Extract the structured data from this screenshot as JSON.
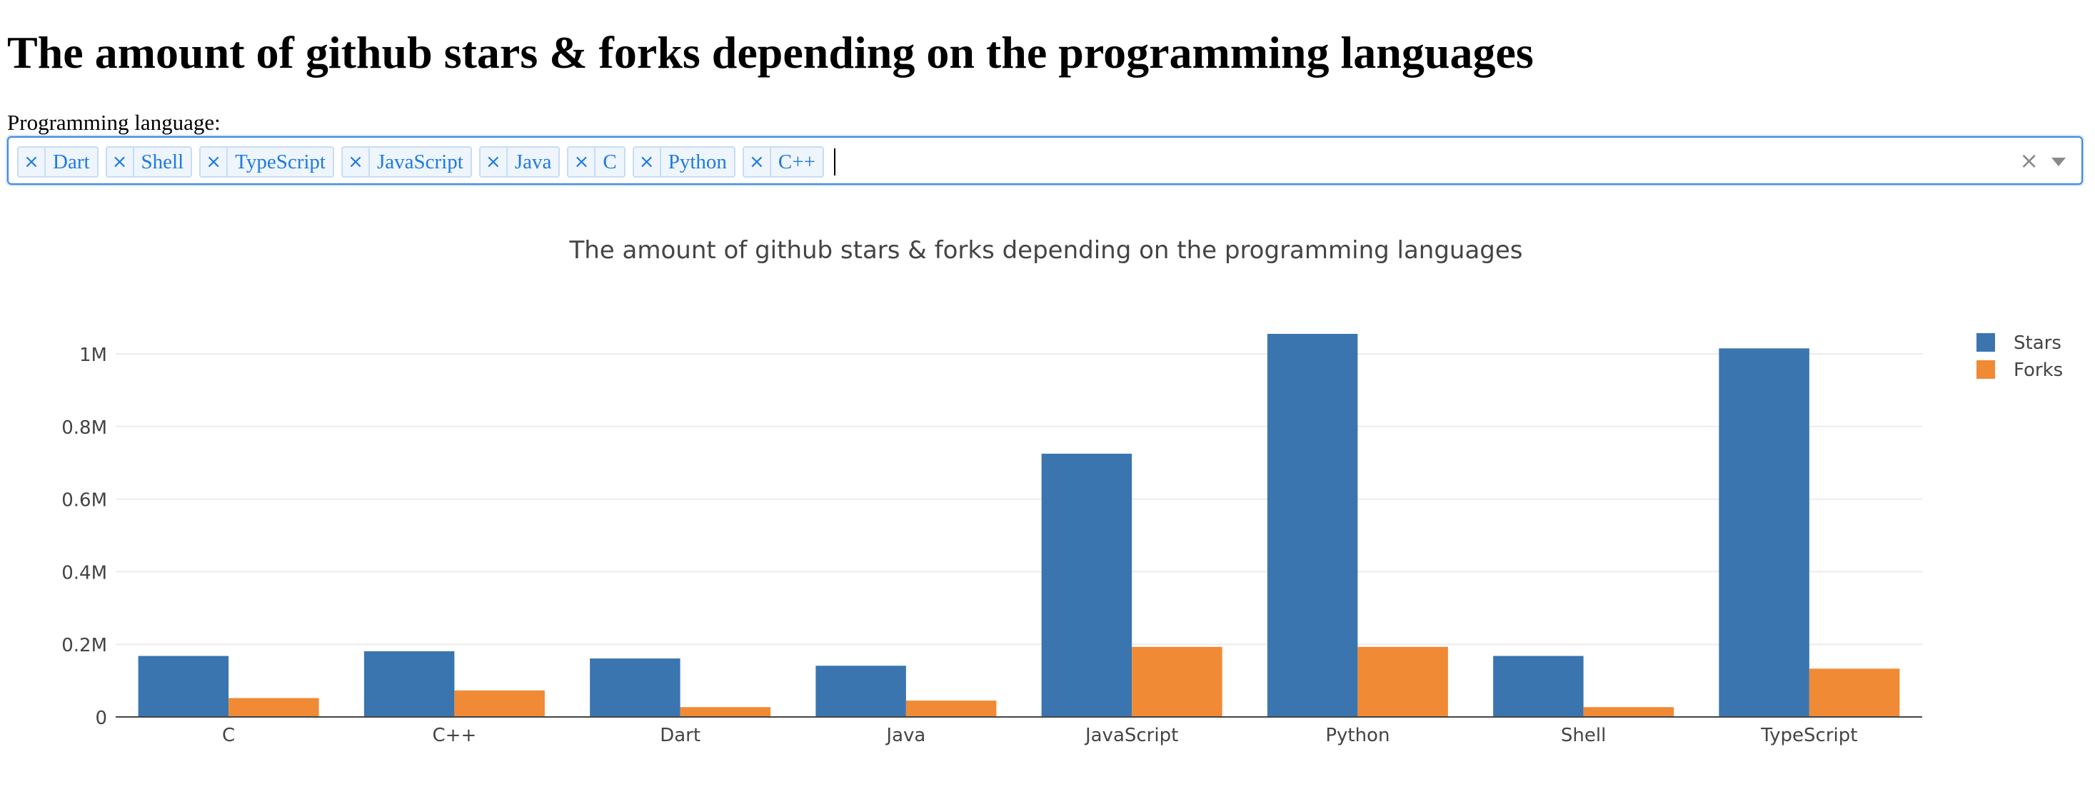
{
  "page": {
    "title": "The amount of github stars & forks depending on the programming languages"
  },
  "filter": {
    "label": "Programming language:",
    "selected": [
      "Dart",
      "Shell",
      "TypeScript",
      "JavaScript",
      "Java",
      "C",
      "Python",
      "C++"
    ],
    "remove_glyph": "×",
    "clear_glyph": "×"
  },
  "chart_data": {
    "type": "bar",
    "title": "The amount of github stars & forks depending on the programming languages",
    "categories": [
      "C",
      "C++",
      "Dart",
      "Java",
      "JavaScript",
      "Python",
      "Shell",
      "TypeScript"
    ],
    "series": [
      {
        "name": "Stars",
        "color": "#3a75b0",
        "values": [
          168000,
          181000,
          161000,
          141000,
          725000,
          1055000,
          168000,
          1015000
        ]
      },
      {
        "name": "Forks",
        "color": "#f08a35",
        "values": [
          52000,
          73000,
          27000,
          45000,
          193000,
          193000,
          27000,
          133000
        ]
      }
    ],
    "y_ticks": [
      0,
      200000,
      400000,
      600000,
      800000,
      1000000
    ],
    "y_tick_labels": [
      "0",
      "0.2M",
      "0.4M",
      "0.6M",
      "0.8M",
      "1M"
    ],
    "ylim": [
      0,
      1110000
    ],
    "grid": true,
    "legend_position": "top-right",
    "xlabel": "",
    "ylabel": ""
  }
}
